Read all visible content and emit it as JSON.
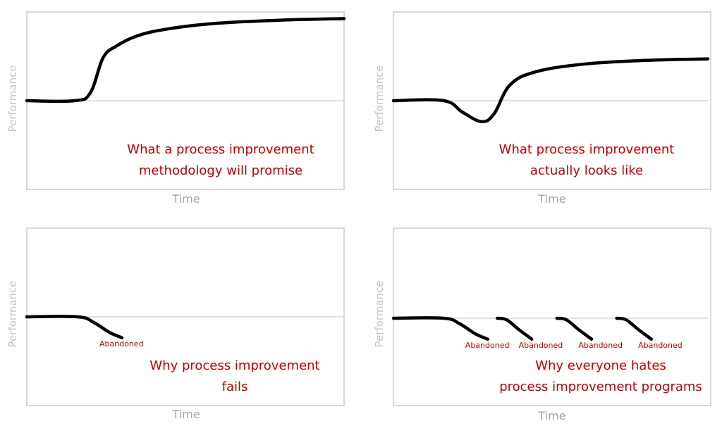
{
  "colors": {
    "curve": "#000000",
    "baseline": "#d9d9d9",
    "caption": "#c00000",
    "axis_label": "#bfbfbf",
    "border": "#d9d9d9"
  },
  "chart_data": [
    {
      "type": "line",
      "xlabel": "Time",
      "ylabel": "Performance",
      "caption": [
        "What a process improvement",
        "methodology will promise"
      ],
      "baseline": 0,
      "series": [
        {
          "x": [
            0,
            0.15,
            0.2,
            0.24,
            0.28,
            0.35,
            0.45,
            0.6,
            0.8,
            1.0
          ],
          "y": [
            0,
            0,
            0.1,
            0.55,
            0.7,
            0.84,
            0.93,
            1.0,
            1.04,
            1.06
          ]
        }
      ],
      "annotations": []
    },
    {
      "type": "line",
      "xlabel": "Time",
      "ylabel": "Performance",
      "caption": [
        "What process improvement",
        "actually looks like"
      ],
      "baseline": 0,
      "series": [
        {
          "x": [
            0,
            0.16,
            0.22,
            0.28,
            0.32,
            0.37,
            0.45,
            0.6,
            0.8,
            1.0
          ],
          "y": [
            0,
            0,
            -0.15,
            -0.27,
            -0.17,
            0.2,
            0.37,
            0.47,
            0.52,
            0.54
          ]
        }
      ],
      "annotations": []
    },
    {
      "type": "line",
      "xlabel": "Time",
      "ylabel": "Performance",
      "caption": [
        "Why process improvement",
        "fails"
      ],
      "baseline": 0,
      "series": [
        {
          "x": [
            0,
            0.16,
            0.21,
            0.26,
            0.3
          ],
          "y": [
            0,
            0,
            -0.07,
            -0.2,
            -0.27
          ]
        }
      ],
      "annotations": [
        {
          "text": "Abandoned",
          "x": 0.3
        }
      ]
    },
    {
      "type": "line",
      "xlabel": "Time",
      "ylabel": "Performance",
      "caption": [
        "Why everyone hates",
        "process improvement programs"
      ],
      "baseline": 0,
      "series": [
        {
          "x": [
            0,
            0.16,
            0.21,
            0.26,
            0.3
          ],
          "y": [
            0,
            0,
            -0.07,
            -0.2,
            -0.27
          ]
        },
        {
          "x": [
            0.33,
            0.36,
            0.4,
            0.44
          ],
          "y": [
            0,
            -0.02,
            -0.15,
            -0.27
          ]
        },
        {
          "x": [
            0.52,
            0.55,
            0.59,
            0.63
          ],
          "y": [
            0,
            -0.02,
            -0.15,
            -0.27
          ]
        },
        {
          "x": [
            0.71,
            0.74,
            0.78,
            0.82
          ],
          "y": [
            0,
            -0.02,
            -0.15,
            -0.27
          ]
        }
      ],
      "annotations": [
        {
          "text": "Abandoned",
          "x": 0.3
        },
        {
          "text": "Abandoned",
          "x": 0.47
        },
        {
          "text": "Abandoned",
          "x": 0.66
        },
        {
          "text": "Abandoned",
          "x": 0.85
        }
      ]
    }
  ]
}
